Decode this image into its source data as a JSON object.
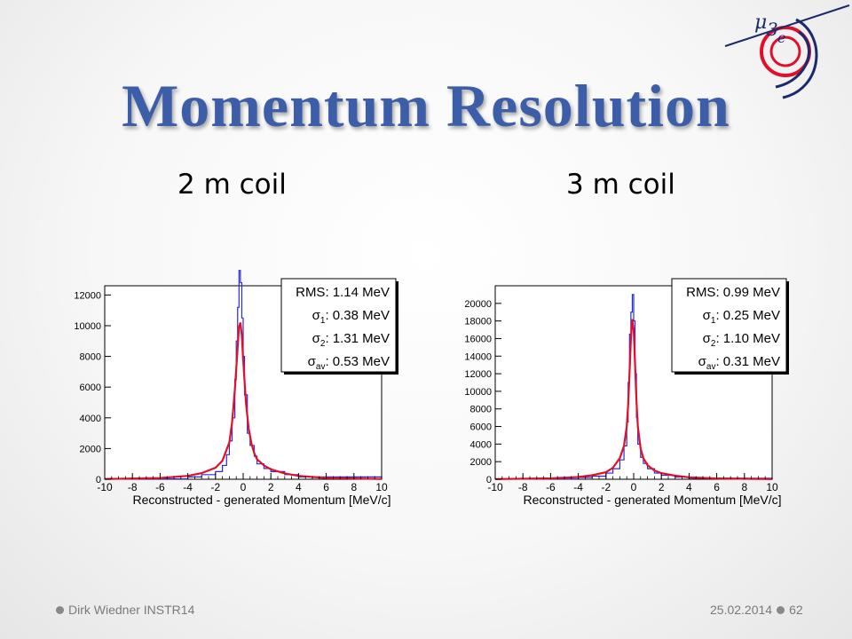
{
  "slide": {
    "title": "Momentum Resolution",
    "footer_left": "Dirk Wiedner INSTR14",
    "footer_date": "25.02.2014",
    "page_number": "62"
  },
  "colors": {
    "title": "#3c5ea8",
    "histogram": "#2b2bd6",
    "fit": "#e0102c"
  },
  "chart_data": [
    {
      "type": "line",
      "panel_label": "2 m coil",
      "xlabel": "Reconstructed - generated Momentum [MeV/c]",
      "ylabel": "",
      "xlim": [
        -10,
        10
      ],
      "ylim": [
        0,
        12600
      ],
      "xticks": [
        -10,
        -8,
        -6,
        -4,
        -2,
        0,
        2,
        4,
        6,
        8,
        10
      ],
      "yticks": [
        0,
        2000,
        4000,
        6000,
        8000,
        10000,
        12000
      ],
      "grid": false,
      "stats_box": {
        "position": "top-right",
        "lines": [
          {
            "label": "RMS",
            "sub": "",
            "value": "1.14 MeV"
          },
          {
            "label": "σ",
            "sub": "1",
            "value": "0.38 MeV"
          },
          {
            "label": "σ",
            "sub": "2",
            "value": "1.31 MeV"
          },
          {
            "label": "σ",
            "sub": "av",
            "value": "0.53 MeV"
          }
        ]
      },
      "series": [
        {
          "style": "histogram",
          "x": [
            -10,
            -4,
            -3,
            -2,
            -1.5,
            -1.2,
            -1,
            -0.8,
            -0.6,
            -0.5,
            -0.4,
            -0.3,
            -0.2,
            -0.1,
            0,
            0.1,
            0.3,
            0.5,
            0.8,
            1,
            1.5,
            2,
            3,
            4,
            10
          ],
          "y": [
            20,
            150,
            300,
            500,
            900,
            1600,
            2500,
            4000,
            6500,
            9000,
            11200,
            13600,
            12800,
            10500,
            8000,
            5500,
            3000,
            2200,
            1500,
            1000,
            700,
            500,
            300,
            150,
            20
          ]
        },
        {
          "style": "fit",
          "x": [
            -10,
            -6,
            -4,
            -3,
            -2,
            -1.5,
            -1,
            -0.8,
            -0.6,
            -0.4,
            -0.3,
            -0.2,
            -0.1,
            0,
            0.2,
            0.4,
            0.6,
            0.8,
            1,
            1.5,
            2,
            3,
            4,
            6,
            10
          ],
          "y": [
            15,
            80,
            220,
            400,
            750,
            1200,
            2400,
            3700,
            5800,
            8600,
            9900,
            10200,
            9400,
            7800,
            5000,
            3300,
            2300,
            1700,
            1300,
            900,
            650,
            380,
            220,
            80,
            15
          ]
        }
      ]
    },
    {
      "type": "line",
      "panel_label": "3 m coil",
      "xlabel": "Reconstructed - generated Momentum [MeV/c]",
      "ylabel": "",
      "xlim": [
        -10,
        10
      ],
      "ylim": [
        0,
        22000
      ],
      "xticks": [
        -10,
        -8,
        -6,
        -4,
        -2,
        0,
        2,
        4,
        6,
        8,
        10
      ],
      "yticks": [
        0,
        2000,
        4000,
        6000,
        8000,
        10000,
        12000,
        14000,
        16000,
        18000,
        20000
      ],
      "grid": false,
      "stats_box": {
        "position": "top-right",
        "lines": [
          {
            "label": "RMS",
            "sub": "",
            "value": "0.99 MeV"
          },
          {
            "label": "σ",
            "sub": "1",
            "value": "0.25 MeV"
          },
          {
            "label": "σ",
            "sub": "2",
            "value": "1.10 MeV"
          },
          {
            "label": "σ",
            "sub": "av",
            "value": "0.31 MeV"
          }
        ]
      },
      "series": [
        {
          "style": "histogram",
          "x": [
            -10,
            -4,
            -3,
            -2,
            -1.5,
            -1,
            -0.7,
            -0.5,
            -0.4,
            -0.3,
            -0.2,
            -0.1,
            0,
            0.1,
            0.2,
            0.3,
            0.5,
            0.7,
            1,
            1.5,
            2,
            3,
            4,
            10
          ],
          "y": [
            30,
            200,
            350,
            700,
            1200,
            2200,
            3800,
            6500,
            11000,
            16500,
            19000,
            21000,
            18000,
            12000,
            7000,
            4000,
            2500,
            1800,
            1200,
            700,
            450,
            250,
            120,
            30
          ]
        },
        {
          "style": "fit",
          "x": [
            -10,
            -6,
            -4,
            -3,
            -2,
            -1.5,
            -1,
            -0.7,
            -0.5,
            -0.4,
            -0.3,
            -0.2,
            -0.1,
            0,
            0.1,
            0.2,
            0.3,
            0.5,
            0.7,
            1,
            1.5,
            2,
            3,
            4,
            6,
            10
          ],
          "y": [
            20,
            100,
            250,
            450,
            800,
            1300,
            2400,
            3800,
            6000,
            8500,
            12000,
            16000,
            18200,
            17000,
            13000,
            9000,
            6000,
            3500,
            2400,
            1600,
            1000,
            700,
            400,
            220,
            90,
            20
          ]
        }
      ]
    }
  ]
}
